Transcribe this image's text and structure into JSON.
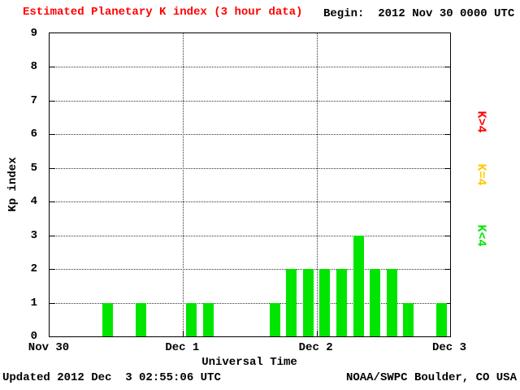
{
  "colors": {
    "title": "#ff0000",
    "axis": "#000000",
    "background": "#ffffff"
  },
  "header": {
    "title": "Estimated Planetary K index (3 hour data)",
    "begin": "Begin:  2012 Nov 30 0000 UTC"
  },
  "footer": {
    "updated": "Updated 2012 Dec  3 02:55:06 UTC",
    "source": "NOAA/SWPC Boulder, CO USA"
  },
  "legend": [
    {
      "label": "K>4",
      "color": "#ff0000"
    },
    {
      "label": "K=4",
      "color": "#ffc800"
    },
    {
      "label": "K<4",
      "color": "#00e500"
    }
  ],
  "chart_data": {
    "type": "bar",
    "title": "Estimated Planetary K index (3 hour data)",
    "begin": "2012 Nov 30 0000 UTC",
    "xlabel": "Universal Time",
    "ylabel": "Kp index",
    "ylim": [
      0,
      9
    ],
    "y_ticks": [
      0,
      1,
      2,
      3,
      4,
      5,
      6,
      7,
      8,
      9
    ],
    "x_ticks": [
      "Nov 30",
      "Dec 1",
      "Dec 2",
      "Dec 3"
    ],
    "hours_per_bar": 3,
    "bars_per_day": 8,
    "values": [
      0,
      0,
      0,
      1,
      0,
      1,
      0,
      0,
      1,
      1,
      0,
      0,
      0,
      1,
      2,
      2,
      2,
      2,
      3,
      2,
      2,
      1,
      0,
      1
    ],
    "color_rule": {
      "lt4": "#00e500",
      "eq4": "#ffc800",
      "gt4": "#ff0000"
    },
    "grid": "dotted horizontal lines at each Kp integer; dotted vertical lines at day boundaries",
    "legend_position": "right"
  }
}
